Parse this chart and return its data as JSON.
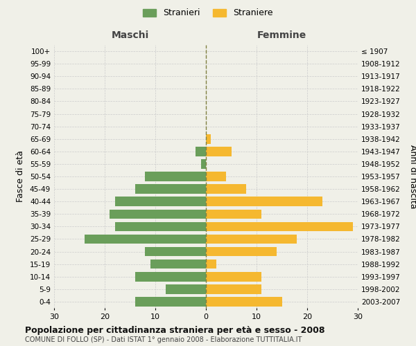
{
  "age_groups": [
    "100+",
    "95-99",
    "90-94",
    "85-89",
    "80-84",
    "75-79",
    "70-74",
    "65-69",
    "60-64",
    "55-59",
    "50-54",
    "45-49",
    "40-44",
    "35-39",
    "30-34",
    "25-29",
    "20-24",
    "15-19",
    "10-14",
    "5-9",
    "0-4"
  ],
  "birth_years": [
    "≤ 1907",
    "1908-1912",
    "1913-1917",
    "1918-1922",
    "1923-1927",
    "1928-1932",
    "1933-1937",
    "1938-1942",
    "1943-1947",
    "1948-1952",
    "1953-1957",
    "1958-1962",
    "1963-1967",
    "1968-1972",
    "1973-1977",
    "1978-1982",
    "1983-1987",
    "1988-1992",
    "1993-1997",
    "1998-2002",
    "2003-2007"
  ],
  "maschi": [
    0,
    0,
    0,
    0,
    0,
    0,
    0,
    0,
    2,
    1,
    12,
    14,
    18,
    19,
    18,
    24,
    12,
    11,
    14,
    8,
    14
  ],
  "femmine": [
    0,
    0,
    0,
    0,
    0,
    0,
    0,
    1,
    5,
    0,
    4,
    8,
    23,
    11,
    29,
    18,
    14,
    2,
    11,
    11,
    15
  ],
  "maschi_color": "#6a9e5a",
  "femmine_color": "#f5b830",
  "center_line_color": "#808040",
  "grid_color": "#cccccc",
  "bg_color": "#f0f0e8",
  "title": "Popolazione per cittadinanza straniera per età e sesso - 2008",
  "subtitle": "COMUNE DI FOLLO (SP) - Dati ISTAT 1° gennaio 2008 - Elaborazione TUTTITALIA.IT",
  "xlabel_left": "Maschi",
  "xlabel_right": "Femmine",
  "ylabel_left": "Fasce di età",
  "ylabel_right": "Anni di nascita",
  "legend_maschi": "Stranieri",
  "legend_femmine": "Straniere",
  "xlim": 30
}
